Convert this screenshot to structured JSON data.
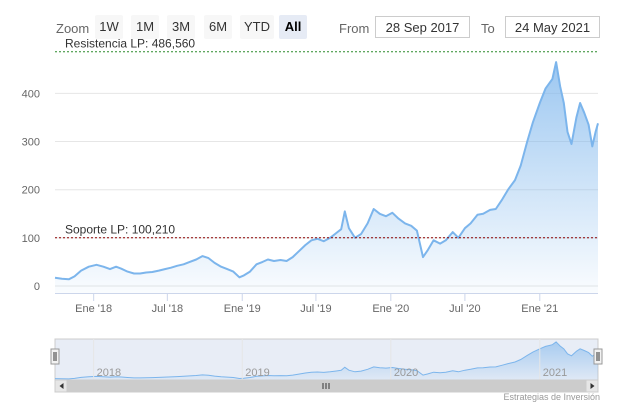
{
  "toolbar": {
    "zoom_label": "Zoom",
    "buttons": [
      "1W",
      "1M",
      "3M",
      "6M",
      "YTD",
      "All"
    ],
    "active_button": "All",
    "from_label": "From",
    "from_value": "28 Sep 2017",
    "to_label": "To",
    "to_value": "24 May 2021"
  },
  "credits": "Estrategias de Inversión",
  "colors": {
    "line": "#7cb5ec",
    "resistance": "#2b8a2b",
    "support": "#8b0000",
    "navigator_mask": "#ccd6eb"
  },
  "chart_data": {
    "type": "area",
    "x_range": [
      "2017-09-28",
      "2021-05-24"
    ],
    "ylim": [
      0,
      500
    ],
    "y_ticks": [
      "0",
      "100",
      "200",
      "300",
      "400"
    ],
    "x_ticks": [
      {
        "date": "2018-01-01",
        "label": "Ene '18"
      },
      {
        "date": "2018-07-01",
        "label": "Jul '18"
      },
      {
        "date": "2019-01-01",
        "label": "Ene '19"
      },
      {
        "date": "2019-07-01",
        "label": "Jul '19"
      },
      {
        "date": "2020-01-01",
        "label": "Ene '20"
      },
      {
        "date": "2020-07-01",
        "label": "Jul '20"
      },
      {
        "date": "2021-01-01",
        "label": "Ene '21"
      }
    ],
    "grid": true,
    "series": [
      {
        "points": [
          [
            "2017-09-28",
            17
          ],
          [
            "2017-10-15",
            15
          ],
          [
            "2017-11-01",
            14
          ],
          [
            "2017-11-15",
            20
          ],
          [
            "2017-12-01",
            32
          ],
          [
            "2017-12-20",
            40
          ],
          [
            "2018-01-08",
            44
          ],
          [
            "2018-01-25",
            40
          ],
          [
            "2018-02-10",
            35
          ],
          [
            "2018-02-25",
            40
          ],
          [
            "2018-03-10",
            36
          ],
          [
            "2018-03-25",
            30
          ],
          [
            "2018-04-10",
            26
          ],
          [
            "2018-04-25",
            26
          ],
          [
            "2018-05-10",
            28
          ],
          [
            "2018-05-25",
            29
          ],
          [
            "2018-06-10",
            32
          ],
          [
            "2018-06-25",
            35
          ],
          [
            "2018-07-10",
            38
          ],
          [
            "2018-07-25",
            42
          ],
          [
            "2018-08-10",
            45
          ],
          [
            "2018-08-25",
            50
          ],
          [
            "2018-09-10",
            55
          ],
          [
            "2018-09-25",
            62
          ],
          [
            "2018-10-10",
            58
          ],
          [
            "2018-10-25",
            48
          ],
          [
            "2018-11-10",
            40
          ],
          [
            "2018-11-25",
            35
          ],
          [
            "2018-12-10",
            30
          ],
          [
            "2018-12-25",
            18
          ],
          [
            "2019-01-05",
            22
          ],
          [
            "2019-01-20",
            30
          ],
          [
            "2019-02-05",
            45
          ],
          [
            "2019-02-20",
            50
          ],
          [
            "2019-03-05",
            55
          ],
          [
            "2019-03-20",
            52
          ],
          [
            "2019-04-05",
            54
          ],
          [
            "2019-04-20",
            52
          ],
          [
            "2019-05-05",
            60
          ],
          [
            "2019-05-20",
            72
          ],
          [
            "2019-06-05",
            85
          ],
          [
            "2019-06-20",
            95
          ],
          [
            "2019-07-05",
            98
          ],
          [
            "2019-07-20",
            93
          ],
          [
            "2019-08-05",
            100
          ],
          [
            "2019-08-20",
            110
          ],
          [
            "2019-09-01",
            118
          ],
          [
            "2019-09-10",
            155
          ],
          [
            "2019-09-20",
            120
          ],
          [
            "2019-10-05",
            100
          ],
          [
            "2019-10-20",
            108
          ],
          [
            "2019-11-05",
            130
          ],
          [
            "2019-11-20",
            160
          ],
          [
            "2019-12-05",
            150
          ],
          [
            "2019-12-20",
            145
          ],
          [
            "2020-01-05",
            152
          ],
          [
            "2020-01-20",
            140
          ],
          [
            "2020-02-05",
            130
          ],
          [
            "2020-02-20",
            125
          ],
          [
            "2020-03-05",
            115
          ],
          [
            "2020-03-20",
            60
          ],
          [
            "2020-04-01",
            75
          ],
          [
            "2020-04-15",
            95
          ],
          [
            "2020-05-01",
            88
          ],
          [
            "2020-05-15",
            95
          ],
          [
            "2020-06-01",
            112
          ],
          [
            "2020-06-15",
            100
          ],
          [
            "2020-07-01",
            120
          ],
          [
            "2020-07-15",
            130
          ],
          [
            "2020-08-01",
            148
          ],
          [
            "2020-08-15",
            150
          ],
          [
            "2020-09-01",
            158
          ],
          [
            "2020-09-15",
            160
          ],
          [
            "2020-10-01",
            180
          ],
          [
            "2020-10-15",
            200
          ],
          [
            "2020-11-01",
            220
          ],
          [
            "2020-11-15",
            250
          ],
          [
            "2020-12-01",
            300
          ],
          [
            "2020-12-15",
            340
          ],
          [
            "2021-01-01",
            380
          ],
          [
            "2021-01-15",
            410
          ],
          [
            "2021-02-01",
            430
          ],
          [
            "2021-02-10",
            465
          ],
          [
            "2021-02-20",
            415
          ],
          [
            "2021-03-01",
            380
          ],
          [
            "2021-03-10",
            320
          ],
          [
            "2021-03-20",
            295
          ],
          [
            "2021-04-01",
            350
          ],
          [
            "2021-04-10",
            380
          ],
          [
            "2021-04-20",
            360
          ],
          [
            "2021-05-01",
            335
          ],
          [
            "2021-05-10",
            290
          ],
          [
            "2021-05-18",
            320
          ],
          [
            "2021-05-24",
            338
          ]
        ]
      }
    ],
    "annotations": [
      {
        "text": "Resistencia LP: 486,560",
        "y": 486.56,
        "style": "dashed",
        "color": "#2b8a2b"
      },
      {
        "text": "Soporte LP: 100,210",
        "y": 100.21,
        "style": "dashed",
        "color": "#8b0000"
      }
    ],
    "navigator": {
      "labels": [
        {
          "date": "2018-01-01",
          "label": "2018"
        },
        {
          "date": "2019-01-01",
          "label": "2019"
        },
        {
          "date": "2020-01-01",
          "label": "2020"
        },
        {
          "date": "2021-01-01",
          "label": "2021"
        }
      ],
      "selected_range": [
        "2017-09-28",
        "2021-05-24"
      ]
    }
  }
}
